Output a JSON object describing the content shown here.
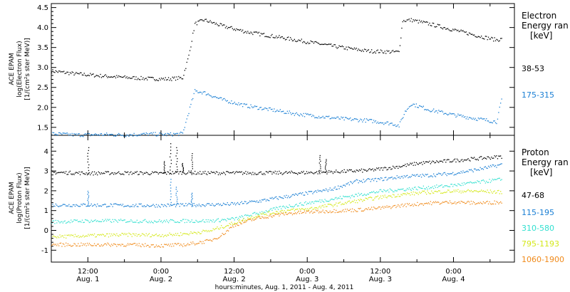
{
  "xlabel": "hours:minutes, Aug.  1, 2011 - Aug.  4, 2011",
  "x_ticks": [
    {
      "hours": 12,
      "l1": "12:00",
      "l2": "Aug. 1"
    },
    {
      "hours": 24,
      "l1": "0:00",
      "l2": "Aug. 2"
    },
    {
      "hours": 36,
      "l1": "12:00",
      "l2": "Aug. 2"
    },
    {
      "hours": 48,
      "l1": "0:00",
      "l2": "Aug. 3"
    },
    {
      "hours": 60,
      "l1": "12:00",
      "l2": "Aug. 3"
    },
    {
      "hours": 72,
      "l1": "0:00",
      "l2": "Aug. 4"
    }
  ],
  "chart_data": [
    {
      "type": "scatter",
      "panel": "electron",
      "ylabel_lines": [
        "ACE EPAM",
        "log(Electron Flux)",
        "[1/(cm²s ster MeV)]"
      ],
      "ylim": [
        1.3,
        4.6
      ],
      "xlim_hours": [
        6,
        82
      ],
      "yticks": [
        "1.5",
        "2.0",
        "2.5",
        "3.0",
        "3.5",
        "4.0",
        "4.5"
      ],
      "legend_title": [
        "Electron",
        "Energy ran",
        "[keV]"
      ],
      "series": [
        {
          "name": "38-53",
          "color": "#000000",
          "points": [
            [
              6,
              2.92
            ],
            [
              10,
              2.85
            ],
            [
              14,
              2.8
            ],
            [
              18,
              2.76
            ],
            [
              22,
              2.73
            ],
            [
              25,
              2.72
            ],
            [
              27.5,
              2.75
            ],
            [
              28.5,
              3.3
            ],
            [
              29.5,
              4.1
            ],
            [
              31,
              4.2
            ],
            [
              34,
              4.05
            ],
            [
              38,
              3.9
            ],
            [
              42,
              3.8
            ],
            [
              46,
              3.7
            ],
            [
              50,
              3.6
            ],
            [
              54,
              3.5
            ],
            [
              58,
              3.42
            ],
            [
              62,
              3.4
            ],
            [
              63,
              3.4
            ],
            [
              63.6,
              4.18
            ],
            [
              65,
              4.2
            ],
            [
              68,
              4.1
            ],
            [
              72,
              3.95
            ],
            [
              76,
              3.8
            ],
            [
              79,
              3.7
            ],
            [
              80,
              3.72
            ]
          ]
        },
        {
          "name": "175-315",
          "color": "#1a7fd4",
          "points": [
            [
              6,
              1.35
            ],
            [
              10,
              1.32
            ],
            [
              14,
              1.33
            ],
            [
              18,
              1.32
            ],
            [
              22,
              1.34
            ],
            [
              25,
              1.33
            ],
            [
              27.5,
              1.35
            ],
            [
              28.5,
              1.9
            ],
            [
              29.5,
              2.42
            ],
            [
              31,
              2.38
            ],
            [
              34,
              2.2
            ],
            [
              38,
              2.05
            ],
            [
              42,
              1.95
            ],
            [
              46,
              1.85
            ],
            [
              50,
              1.78
            ],
            [
              54,
              1.72
            ],
            [
              58,
              1.68
            ],
            [
              62,
              1.6
            ],
            [
              63,
              1.55
            ],
            [
              64,
              1.9
            ],
            [
              65,
              2.1
            ],
            [
              68,
              1.95
            ],
            [
              72,
              1.82
            ],
            [
              76,
              1.72
            ],
            [
              79,
              1.65
            ],
            [
              80,
              2.3
            ]
          ]
        }
      ]
    },
    {
      "type": "scatter",
      "panel": "proton",
      "ylabel_lines": [
        "ACE EPAM",
        "log(Proton Flux)",
        "[1/(cm²s ster MeV)]"
      ],
      "ylim": [
        -1.6,
        4.8
      ],
      "xlim_hours": [
        6,
        82
      ],
      "yticks": [
        "-1",
        "0",
        "1",
        "2",
        "3",
        "4"
      ],
      "legend_title": [
        "Proton",
        "Energy ran",
        "[keV]"
      ],
      "series": [
        {
          "name": "47-68",
          "color": "#000000",
          "points": [
            [
              6,
              2.95
            ],
            [
              10,
              2.92
            ],
            [
              12,
              2.9
            ],
            [
              16,
              2.92
            ],
            [
              20,
              2.92
            ],
            [
              24,
              2.9
            ],
            [
              27,
              2.95
            ],
            [
              30,
              2.92
            ],
            [
              34,
              2.92
            ],
            [
              40,
              2.92
            ],
            [
              46,
              2.93
            ],
            [
              50,
              2.95
            ],
            [
              54,
              3.0
            ],
            [
              58,
              3.05
            ],
            [
              62,
              3.2
            ],
            [
              66,
              3.4
            ],
            [
              70,
              3.5
            ],
            [
              74,
              3.6
            ],
            [
              78,
              3.7
            ],
            [
              80,
              3.75
            ]
          ],
          "spikes": [
            [
              12,
              4.2
            ],
            [
              24.5,
              3.5
            ],
            [
              25.5,
              4.4
            ],
            [
              26.5,
              4.2
            ],
            [
              27.5,
              3.4
            ],
            [
              29,
              3.9
            ],
            [
              50,
              3.8
            ],
            [
              51,
              3.6
            ]
          ]
        },
        {
          "name": "115-195",
          "color": "#1a7fd4",
          "points": [
            [
              6,
              1.3
            ],
            [
              12,
              1.3
            ],
            [
              18,
              1.28
            ],
            [
              24,
              1.28
            ],
            [
              28,
              1.3
            ],
            [
              32,
              1.32
            ],
            [
              36,
              1.35
            ],
            [
              40,
              1.5
            ],
            [
              44,
              1.7
            ],
            [
              48,
              1.9
            ],
            [
              52,
              2.1
            ],
            [
              56,
              2.5
            ],
            [
              60,
              2.6
            ],
            [
              64,
              2.75
            ],
            [
              68,
              2.8
            ],
            [
              72,
              2.9
            ],
            [
              76,
              3.1
            ],
            [
              80,
              3.35
            ]
          ],
          "spikes": [
            [
              12,
              2.0
            ],
            [
              25.5,
              2.6
            ],
            [
              26.5,
              2.2
            ],
            [
              29,
              1.9
            ]
          ]
        },
        {
          "name": "310-580",
          "color": "#33e0d0",
          "points": [
            [
              6,
              0.45
            ],
            [
              12,
              0.5
            ],
            [
              18,
              0.5
            ],
            [
              24,
              0.48
            ],
            [
              28,
              0.5
            ],
            [
              32,
              0.5
            ],
            [
              36,
              0.6
            ],
            [
              40,
              0.9
            ],
            [
              44,
              1.2
            ],
            [
              48,
              1.4
            ],
            [
              52,
              1.6
            ],
            [
              56,
              1.8
            ],
            [
              60,
              2.0
            ],
            [
              64,
              2.1
            ],
            [
              68,
              2.2
            ],
            [
              72,
              2.3
            ],
            [
              76,
              2.45
            ],
            [
              80,
              2.6
            ]
          ]
        },
        {
          "name": "795-1193",
          "color": "#d4e81a",
          "points": [
            [
              6,
              -0.3
            ],
            [
              12,
              -0.25
            ],
            [
              18,
              -0.2
            ],
            [
              24,
              -0.22
            ],
            [
              28,
              -0.15
            ],
            [
              32,
              0.0
            ],
            [
              36,
              0.4
            ],
            [
              40,
              0.8
            ],
            [
              44,
              1.0
            ],
            [
              48,
              1.1
            ],
            [
              52,
              1.3
            ],
            [
              56,
              1.5
            ],
            [
              60,
              1.7
            ],
            [
              64,
              1.85
            ],
            [
              68,
              1.95
            ],
            [
              72,
              2.0
            ],
            [
              76,
              2.0
            ],
            [
              80,
              1.95
            ]
          ]
        },
        {
          "name": "1060-1900",
          "color": "#f08a1a",
          "points": [
            [
              6,
              -0.7
            ],
            [
              12,
              -0.7
            ],
            [
              18,
              -0.7
            ],
            [
              24,
              -0.75
            ],
            [
              28,
              -0.7
            ],
            [
              32,
              -0.5
            ],
            [
              34,
              -0.2
            ],
            [
              36,
              0.3
            ],
            [
              40,
              0.65
            ],
            [
              44,
              0.85
            ],
            [
              48,
              0.95
            ],
            [
              52,
              1.0
            ],
            [
              56,
              1.05
            ],
            [
              60,
              1.15
            ],
            [
              64,
              1.3
            ],
            [
              68,
              1.4
            ],
            [
              72,
              1.45
            ],
            [
              76,
              1.4
            ],
            [
              80,
              1.45
            ]
          ]
        }
      ]
    }
  ]
}
